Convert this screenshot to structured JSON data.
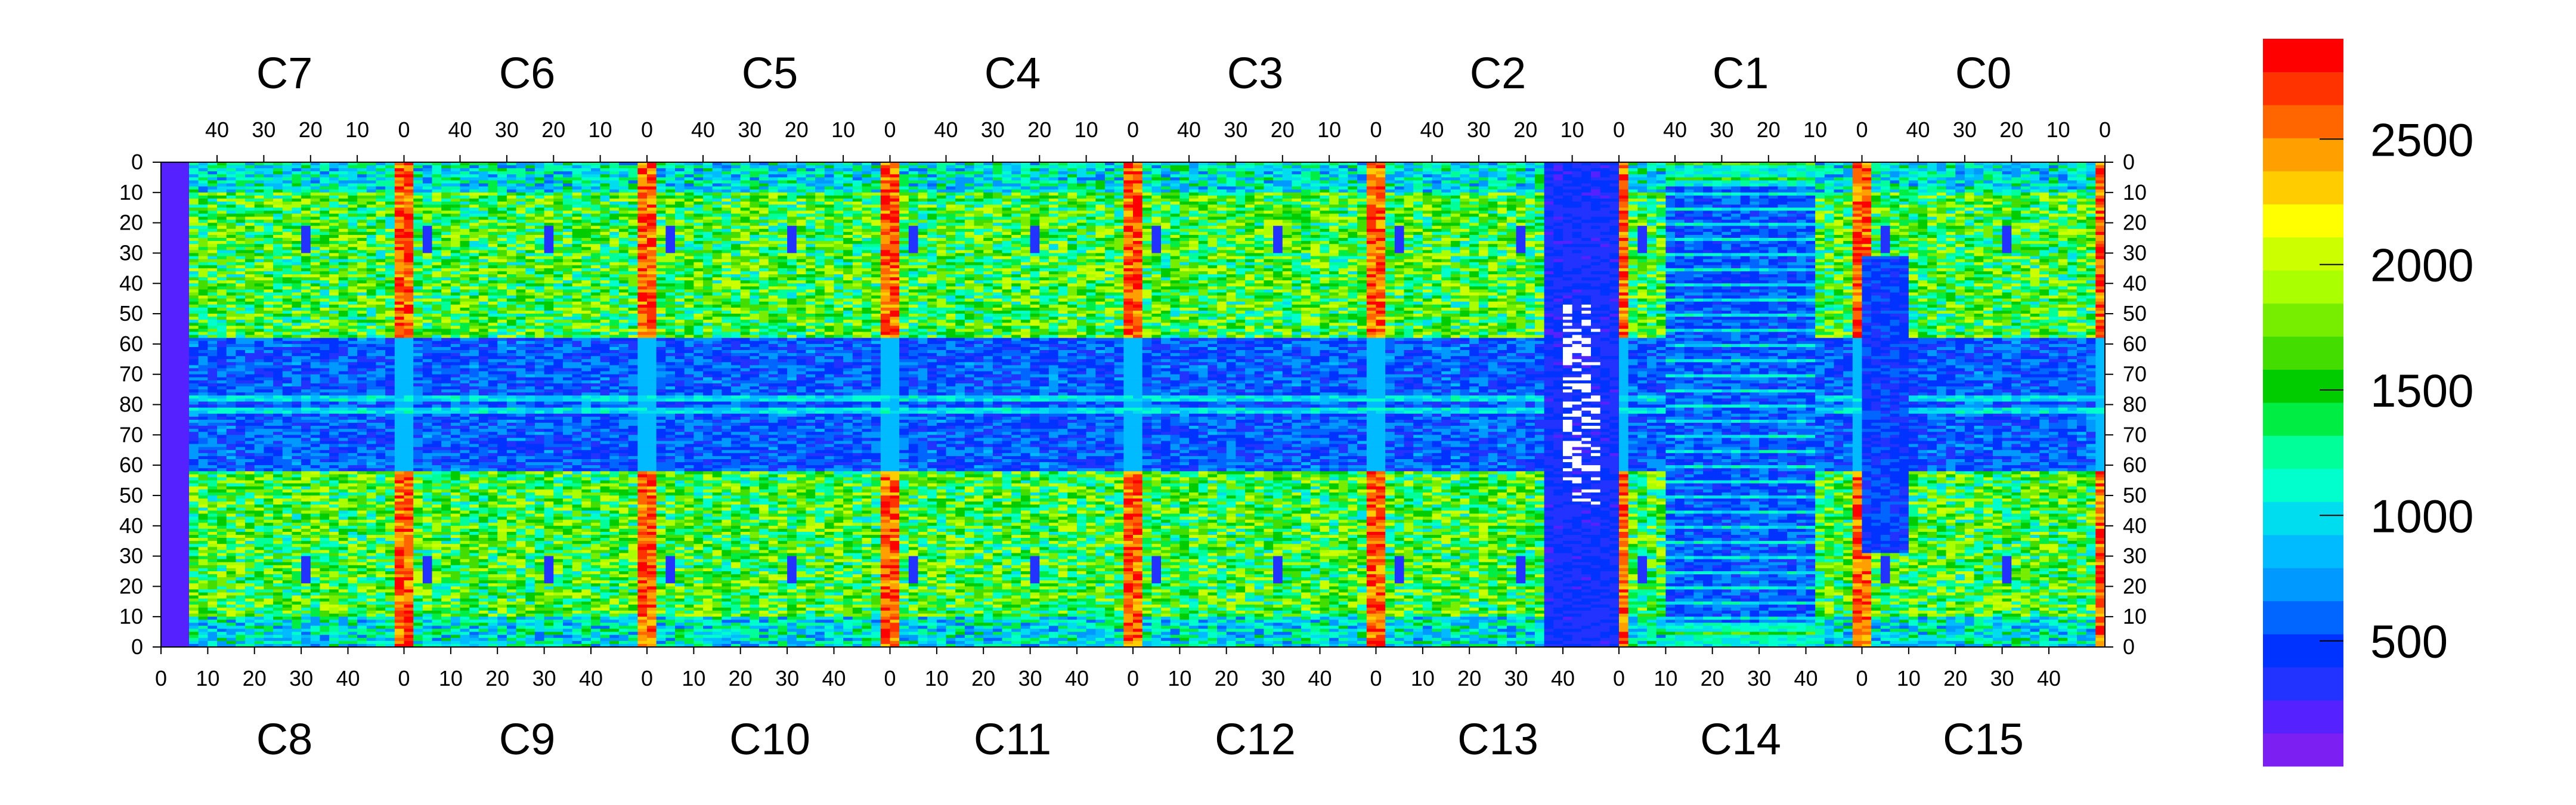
{
  "chart_data": {
    "type": "heatmap",
    "top_chip_labels": [
      "C7",
      "C6",
      "C5",
      "C4",
      "C3",
      "C2",
      "C1",
      "C0"
    ],
    "bottom_chip_labels": [
      "C8",
      "C9",
      "C10",
      "C11",
      "C12",
      "C13",
      "C14",
      "C15"
    ],
    "top_axis_ticks": [
      "40",
      "30",
      "20",
      "10",
      "0"
    ],
    "bottom_axis_ticks": [
      "0",
      "10",
      "20",
      "30",
      "40"
    ],
    "y_axis_ticks": [
      "0",
      "10",
      "20",
      "30",
      "40",
      "50",
      "60",
      "70",
      "80",
      "70",
      "60",
      "50",
      "40",
      "30",
      "20",
      "10",
      "0"
    ],
    "colorbar": {
      "range": [
        0,
        2900
      ],
      "ticks": [
        500,
        1000,
        1500,
        2000,
        2500
      ],
      "tick_labels": [
        "500",
        "1000",
        "1500",
        "2000",
        "2500"
      ]
    },
    "columns_per_chip": 52,
    "rows_per_half": 80,
    "chips": 8,
    "colors": {
      "palette": [
        "#7b1ff2",
        "#5522ff",
        "#2233ff",
        "#0033ff",
        "#0066ff",
        "#0099ff",
        "#00bbff",
        "#00ddee",
        "#00ffcc",
        "#00ff99",
        "#00ee44",
        "#00cc00",
        "#44dd00",
        "#77ee00",
        "#aaff00",
        "#ccff00",
        "#ffff00",
        "#ffcc00",
        "#ffa000",
        "#ff6600",
        "#ff3300",
        "#ff0000"
      ],
      "dead": "#ffffff"
    }
  }
}
